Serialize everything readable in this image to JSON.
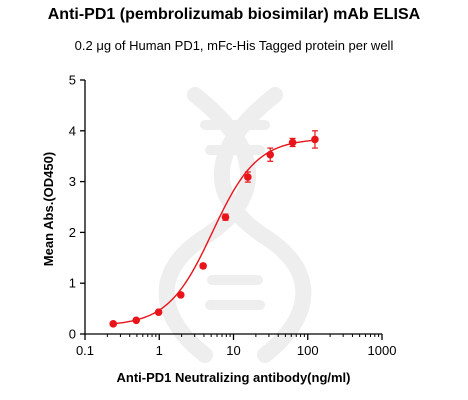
{
  "title": "Anti-PD1 (pembrolizumab biosimilar) mAb ELISA",
  "subtitle": "0.2 μg of Human PD1, mFc-His Tagged protein per well",
  "colors": {
    "series": "#e8141a",
    "axis": "#000000",
    "watermark": "#eeeeee"
  },
  "chart_data": {
    "type": "scatter",
    "title": "Anti-PD1 (pembrolizumab biosimilar) mAb ELISA",
    "subtitle": "0.2 μg of Human PD1, mFc-His Tagged protein per well",
    "xlabel": "Anti-PD1 Neutralizing antibody(ng/ml)",
    "ylabel": "Mean Abs.(OD450)",
    "xscale": "log",
    "xlim": [
      0.1,
      1000
    ],
    "ylim": [
      0,
      5
    ],
    "x_ticks": [
      0.1,
      1,
      10,
      100,
      1000
    ],
    "x_tick_labels": [
      "0.1",
      "1",
      "10",
      "100",
      "1000"
    ],
    "y_ticks": [
      0,
      1,
      2,
      3,
      4,
      5
    ],
    "y_tick_labels": [
      "0",
      "1",
      "2",
      "3",
      "4",
      "5"
    ],
    "grid": false,
    "legend": "none",
    "fit": "sigmoidal four-parameter logistic curve",
    "series": [
      {
        "x": [
          0.24,
          0.49,
          0.98,
          1.95,
          3.9,
          7.8,
          15.6,
          31.25,
          62.5,
          125
        ],
        "y": [
          0.2,
          0.27,
          0.43,
          0.77,
          1.34,
          2.3,
          3.09,
          3.53,
          3.77,
          3.83
        ],
        "error": [
          0.02,
          0.02,
          0.03,
          0.03,
          0.04,
          0.06,
          0.1,
          0.13,
          0.08,
          0.17
        ]
      }
    ]
  }
}
